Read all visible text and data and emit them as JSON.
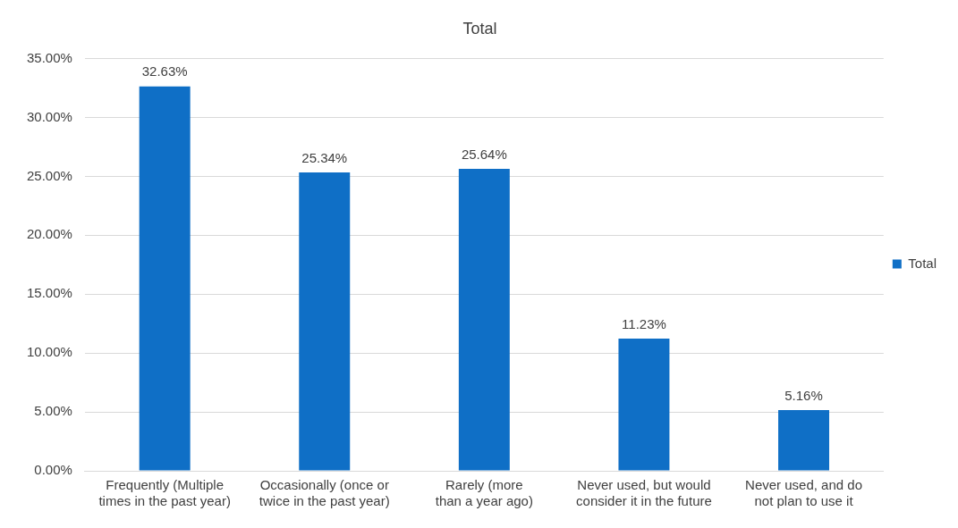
{
  "chart_data": {
    "type": "bar",
    "title": "Total",
    "categories": [
      "Frequently (Multiple times in the past year)",
      "Occasionally (once or twice in the past year)",
      "Rarely (more than a year ago)",
      "Never used, but would consider it in the future",
      "Never used, and do not plan to use it"
    ],
    "series": [
      {
        "name": "Total",
        "color": "#0f6fc6",
        "values": [
          32.63,
          25.34,
          25.64,
          11.23,
          5.16
        ],
        "value_labels": [
          "32.63%",
          "25.34%",
          "25.64%",
          "11.23%",
          "5.16%"
        ]
      }
    ],
    "ylim": [
      0,
      35
    ],
    "yticks": [
      {
        "value": 0,
        "label": "0.00%"
      },
      {
        "value": 5,
        "label": "5.00%"
      },
      {
        "value": 10,
        "label": "10.00%"
      },
      {
        "value": 15,
        "label": "15.00%"
      },
      {
        "value": 20,
        "label": "20.00%"
      },
      {
        "value": 25,
        "label": "25.00%"
      },
      {
        "value": 30,
        "label": "30.00%"
      },
      {
        "value": 35,
        "label": "35.00%"
      }
    ],
    "grid": "y",
    "legend": "right"
  }
}
